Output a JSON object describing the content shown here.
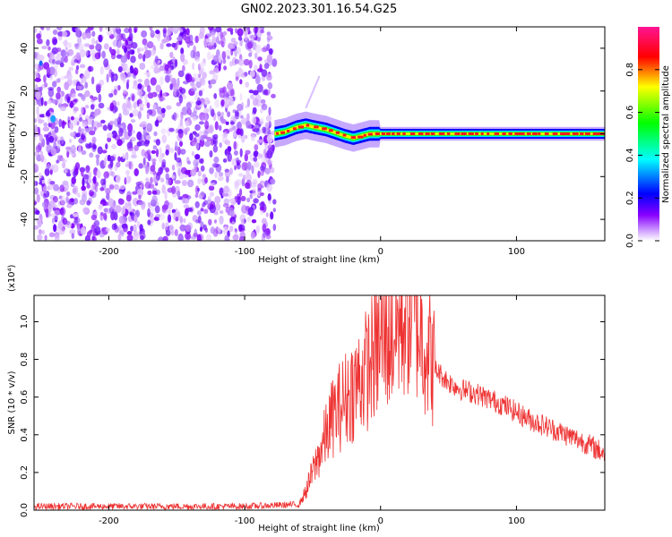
{
  "title": "GN02.2023.301.16.54.G25",
  "chart_data": [
    {
      "type": "heatmap",
      "xlabel": "Height of straight line (km)",
      "ylabel": "Frequency (Hz)",
      "xlim": [
        -255,
        165
      ],
      "ylim": [
        -50,
        50
      ],
      "x_ticks": [
        -200,
        -100,
        0,
        100
      ],
      "y_ticks": [
        40,
        20,
        0,
        -20,
        -40
      ],
      "colorbar": {
        "label": "Normalized spectral amplitude",
        "range": [
          0,
          1
        ],
        "ticks": [
          "0.0",
          "0.2",
          "0.4",
          "0.6",
          "0.8"
        ],
        "colors": [
          "#ffffff",
          "#9933ff",
          "#0000ff",
          "#00ffff",
          "#00ff00",
          "#ffff00",
          "#ff0000",
          "#ff1493"
        ]
      },
      "noise_region_x": [
        -255,
        -78
      ],
      "signal_track": {
        "x": [
          -78,
          -70,
          -62,
          -55,
          -48,
          -40,
          -33,
          -26,
          -20,
          -14,
          -8,
          0,
          20,
          60,
          100,
          165
        ],
        "freq_hz": [
          0,
          1,
          3,
          4,
          3,
          2,
          0.5,
          -1,
          -2,
          -1,
          0,
          0,
          0,
          0,
          0,
          0
        ]
      }
    },
    {
      "type": "line",
      "xlabel": "Height of straight line (km)",
      "ylabel": "SNR (10 * v/v)",
      "y_multiplier": "(x10⁴)",
      "xlim": [
        -255,
        165
      ],
      "ylim": [
        0,
        1.14
      ],
      "x_ticks": [
        -200,
        -100,
        0,
        100
      ],
      "y_ticks": [
        "0.0",
        "0.2",
        "0.4",
        "0.6",
        "0.8",
        "1.0"
      ],
      "series": [
        {
          "color": "#ee3333",
          "x": [
            -255,
            -200,
            -150,
            -100,
            -60,
            -55,
            -50,
            -45,
            -40,
            -35,
            -30,
            -25,
            -20,
            -15,
            -10,
            -5,
            0,
            5,
            10,
            15,
            20,
            25,
            30,
            35,
            40,
            50,
            60,
            70,
            80,
            90,
            100,
            110,
            120,
            130,
            140,
            150,
            160,
            165
          ],
          "y": [
            0.02,
            0.02,
            0.02,
            0.02,
            0.03,
            0.1,
            0.2,
            0.3,
            0.4,
            0.5,
            0.55,
            0.6,
            0.65,
            0.7,
            0.75,
            0.82,
            0.88,
            0.92,
            0.95,
            1.0,
            1.05,
            1.03,
            0.95,
            0.85,
            0.75,
            0.68,
            0.64,
            0.62,
            0.59,
            0.56,
            0.52,
            0.48,
            0.45,
            0.42,
            0.39,
            0.36,
            0.32,
            0.3
          ]
        }
      ]
    }
  ]
}
